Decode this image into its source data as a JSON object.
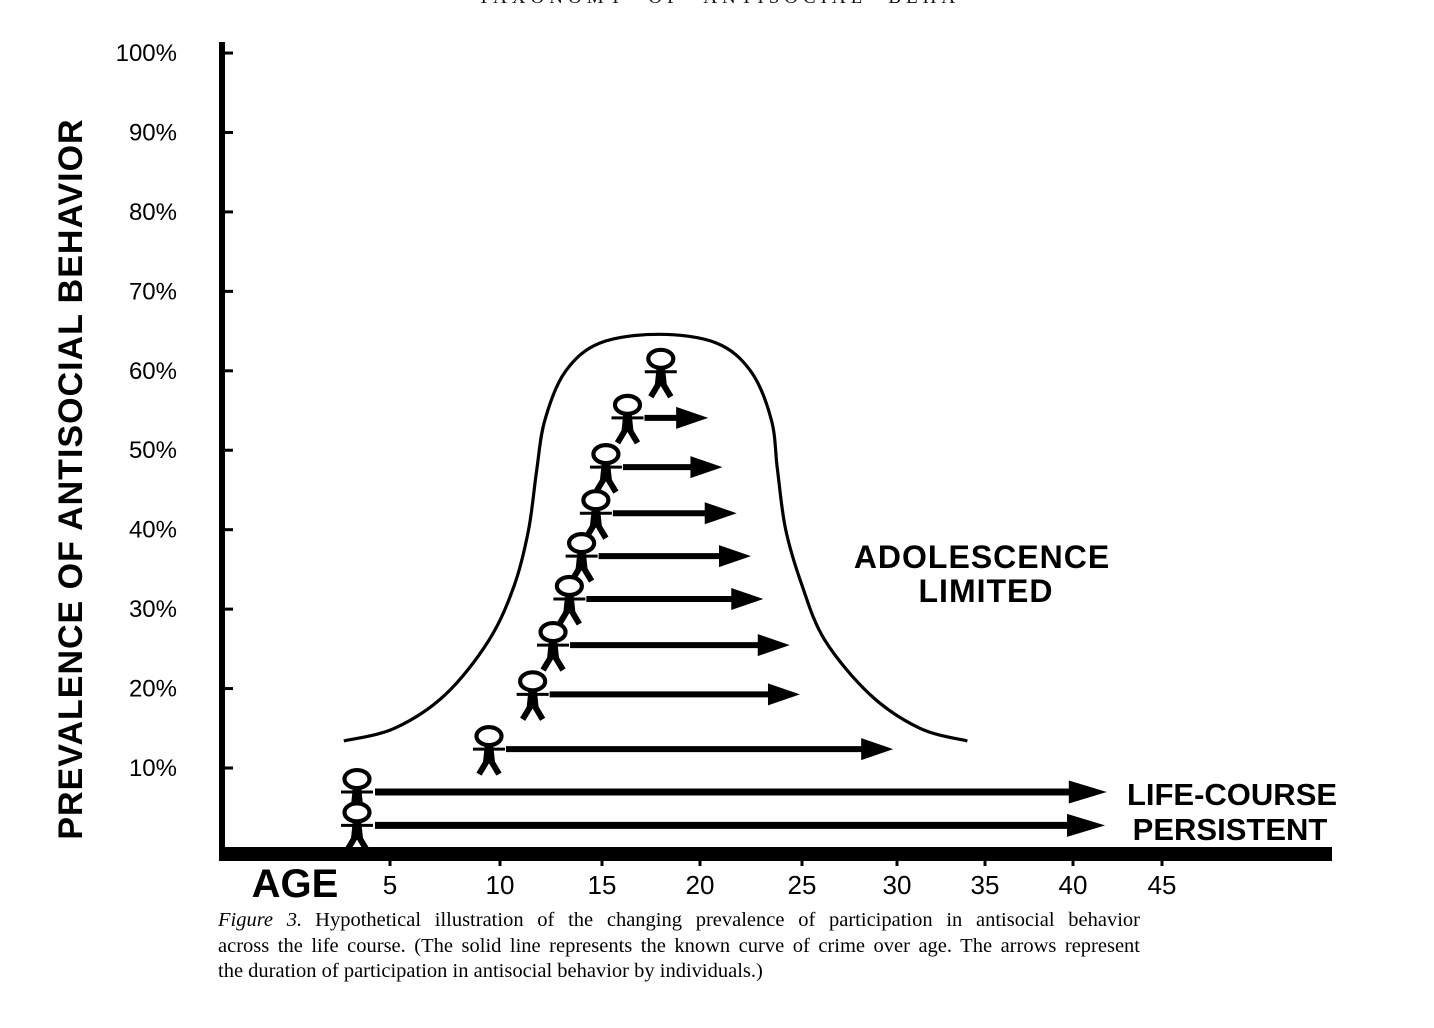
{
  "header": {
    "partial_text": "TAXONOMY OF ANTISOCIAL BEHAVIOR"
  },
  "labels": {
    "age_axis": "AGE",
    "adolescence_limited_line1": "ADOLESCENCE",
    "adolescence_limited_line2": "LIMITED",
    "life_course_line1": "LIFE-COURSE",
    "life_course_line2": "PERSISTENT"
  },
  "caption": {
    "figure_label": "Figure 3.",
    "line1": "Hypothetical illustration of the changing prevalence of participation in antisocial behavior",
    "line2": "across the life course. (The solid line represents the known curve of crime over age. The arrows represent",
    "line3": "the duration of participation in antisocial behavior by individuals.)"
  },
  "chart_data": {
    "type": "line",
    "title": "Figure 3",
    "xlabel": "AGE",
    "ylabel": "PREVALENCE OF ANTISOCIAL BEHAVIOR",
    "x_ticks": [
      5,
      10,
      15,
      20,
      25,
      30,
      35,
      40,
      45
    ],
    "y_tick_labels": [
      "100%",
      "90%",
      "80%",
      "70%",
      "60%",
      "50%",
      "40%",
      "30%",
      "20%",
      "10%"
    ],
    "xlim": [
      0,
      50
    ],
    "ylim_pct": [
      0,
      100
    ],
    "grid": false,
    "legend": "none",
    "curve": {
      "name": "known curve of crime over age",
      "peak": {
        "age": 17.9,
        "pct": 64.6
      },
      "points_age_pct": [
        [
          2.9,
          13.4
        ],
        [
          5.2,
          15.0
        ],
        [
          7.5,
          19.2
        ],
        [
          9.5,
          26.1
        ],
        [
          10.7,
          33.0
        ],
        [
          11.4,
          40.0
        ],
        [
          11.8,
          47.5
        ],
        [
          12.2,
          53.8
        ],
        [
          13.2,
          59.9
        ],
        [
          14.9,
          63.5
        ],
        [
          17.9,
          64.6
        ],
        [
          20.8,
          63.5
        ],
        [
          22.5,
          59.9
        ],
        [
          23.5,
          53.8
        ],
        [
          23.8,
          47.5
        ],
        [
          24.2,
          40.0
        ],
        [
          25.0,
          33.0
        ],
        [
          26.2,
          26.1
        ],
        [
          28.6,
          19.2
        ],
        [
          31.3,
          15.0
        ],
        [
          34.0,
          13.4
        ]
      ]
    },
    "individuals": {
      "adolescence_limited": [
        {
          "age": 18.0,
          "level_pct": 60.0,
          "end_age": null
        },
        {
          "age": 16.3,
          "level_pct": 54.2,
          "end_age": 20.4
        },
        {
          "age": 15.2,
          "level_pct": 48.0,
          "end_age": 21.1
        },
        {
          "age": 14.7,
          "level_pct": 42.2,
          "end_age": 21.8
        },
        {
          "age": 14.0,
          "level_pct": 36.8,
          "end_age": 22.5
        },
        {
          "age": 13.4,
          "level_pct": 31.4,
          "end_age": 23.1
        },
        {
          "age": 12.6,
          "level_pct": 25.6,
          "end_age": 24.4
        },
        {
          "age": 11.6,
          "level_pct": 19.4,
          "end_age": 24.9
        },
        {
          "age": 9.5,
          "level_pct": 12.5,
          "end_age": 29.8
        }
      ],
      "life_course_persistent": [
        {
          "age": 3.5,
          "level_pct": 7.1,
          "end_age": 41.9
        },
        {
          "age": 3.5,
          "level_pct": 2.9,
          "end_age": 41.8
        }
      ]
    },
    "annotations": [
      "ADOLESCENCE LIMITED",
      "LIFE-COURSE PERSISTENT"
    ]
  }
}
